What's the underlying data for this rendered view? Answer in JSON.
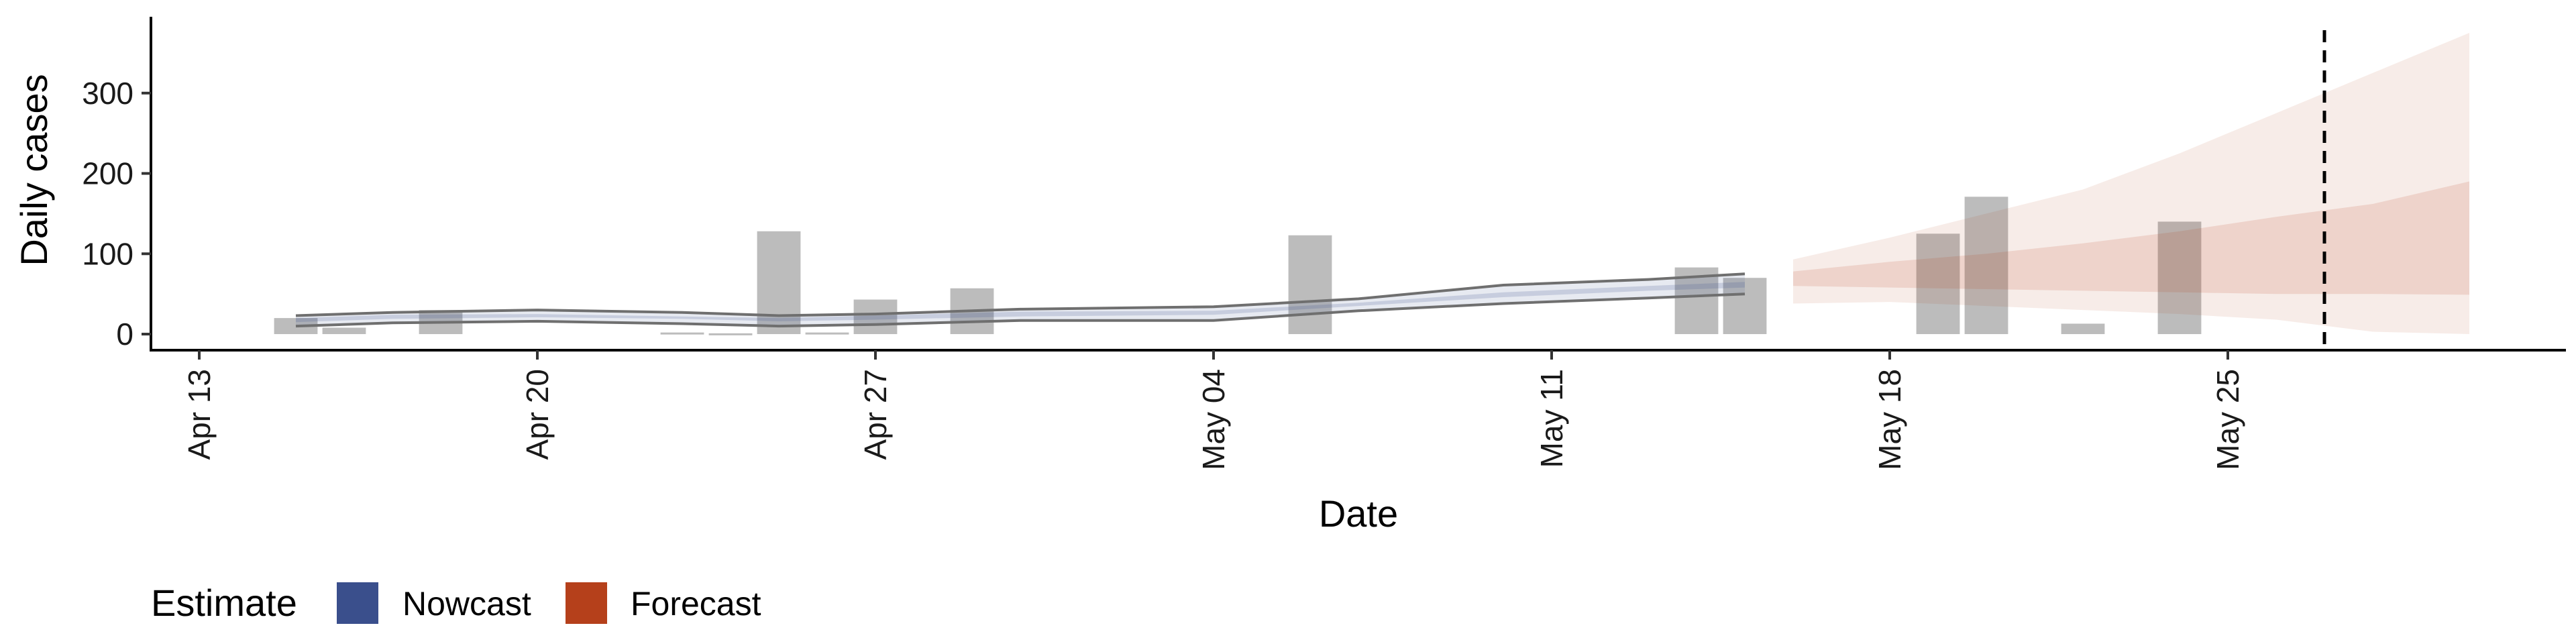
{
  "chart_data": {
    "type": "bar",
    "xlabel": "Date",
    "ylabel": "Daily cases",
    "ylim": [
      -20,
      395
    ],
    "yticks": [
      0,
      100,
      200,
      300
    ],
    "xlim": [
      "2020-04-12",
      "2020-06-01"
    ],
    "xticks": [
      {
        "date": "2020-04-13",
        "label": "Apr 13"
      },
      {
        "date": "2020-04-20",
        "label": "Apr 20"
      },
      {
        "date": "2020-04-27",
        "label": "Apr 27"
      },
      {
        "date": "2020-05-04",
        "label": "May 04"
      },
      {
        "date": "2020-05-11",
        "label": "May 11"
      },
      {
        "date": "2020-05-18",
        "label": "May 18"
      },
      {
        "date": "2020-05-25",
        "label": "May 25"
      }
    ],
    "grid": false,
    "bars": {
      "color": "#a6a6a6",
      "points": [
        {
          "date": "2020-04-15",
          "value": 20
        },
        {
          "date": "2020-04-16",
          "value": 8
        },
        {
          "date": "2020-04-18",
          "value": 30
        },
        {
          "date": "2020-04-23",
          "value": 2
        },
        {
          "date": "2020-04-24",
          "value": 1
        },
        {
          "date": "2020-04-25",
          "value": 128
        },
        {
          "date": "2020-04-26",
          "value": 2
        },
        {
          "date": "2020-04-27",
          "value": 43
        },
        {
          "date": "2020-04-29",
          "value": 57
        },
        {
          "date": "2020-05-06",
          "value": 123
        },
        {
          "date": "2020-05-14",
          "value": 83
        },
        {
          "date": "2020-05-15",
          "value": 70
        },
        {
          "date": "2020-05-19",
          "value": 125
        },
        {
          "date": "2020-05-20",
          "value": 171
        },
        {
          "date": "2020-05-22",
          "value": 13
        },
        {
          "date": "2020-05-24",
          "value": 140
        }
      ]
    },
    "series": [
      {
        "name": "Nowcast",
        "color": "#3a4f8c",
        "x": [
          "2020-04-15",
          "2020-04-17",
          "2020-04-20",
          "2020-04-23",
          "2020-04-25",
          "2020-04-27",
          "2020-04-30",
          "2020-05-04",
          "2020-05-07",
          "2020-05-10",
          "2020-05-13",
          "2020-05-15"
        ],
        "lower": [
          10,
          14,
          16,
          13,
          10,
          12,
          17,
          17,
          29,
          38,
          45,
          50
        ],
        "inner_lower": [
          15,
          19,
          21,
          19,
          16,
          18,
          22,
          24,
          35,
          46,
          54,
          58
        ],
        "inner_upper": [
          20,
          24,
          25,
          22,
          20,
          23,
          28,
          29,
          39,
          52,
          60,
          65
        ],
        "upper": [
          23,
          27,
          30,
          27,
          23,
          25,
          31,
          34,
          44,
          61,
          68,
          75
        ]
      },
      {
        "name": "Forecast",
        "color": "#b5401b",
        "x": [
          "2020-05-16",
          "2020-05-18",
          "2020-05-20",
          "2020-05-22",
          "2020-05-24",
          "2020-05-26",
          "2020-05-28",
          "2020-05-30"
        ],
        "outer_lower": [
          38,
          40,
          35,
          30,
          25,
          18,
          3,
          0
        ],
        "lower": [
          60,
          58,
          56,
          54,
          52,
          50,
          50,
          49
        ],
        "upper": [
          78,
          90,
          100,
          113,
          128,
          146,
          162,
          190
        ],
        "outer_upper": [
          93,
          120,
          150,
          180,
          225,
          275,
          325,
          375
        ]
      }
    ],
    "vline": {
      "date": "2020-05-27",
      "style": "dashed"
    },
    "legend": {
      "title": "Estimate",
      "position": "bottom-left",
      "entries": [
        {
          "label": "Nowcast",
          "color": "#3a4f8c"
        },
        {
          "label": "Forecast",
          "color": "#b5401b"
        }
      ]
    }
  }
}
